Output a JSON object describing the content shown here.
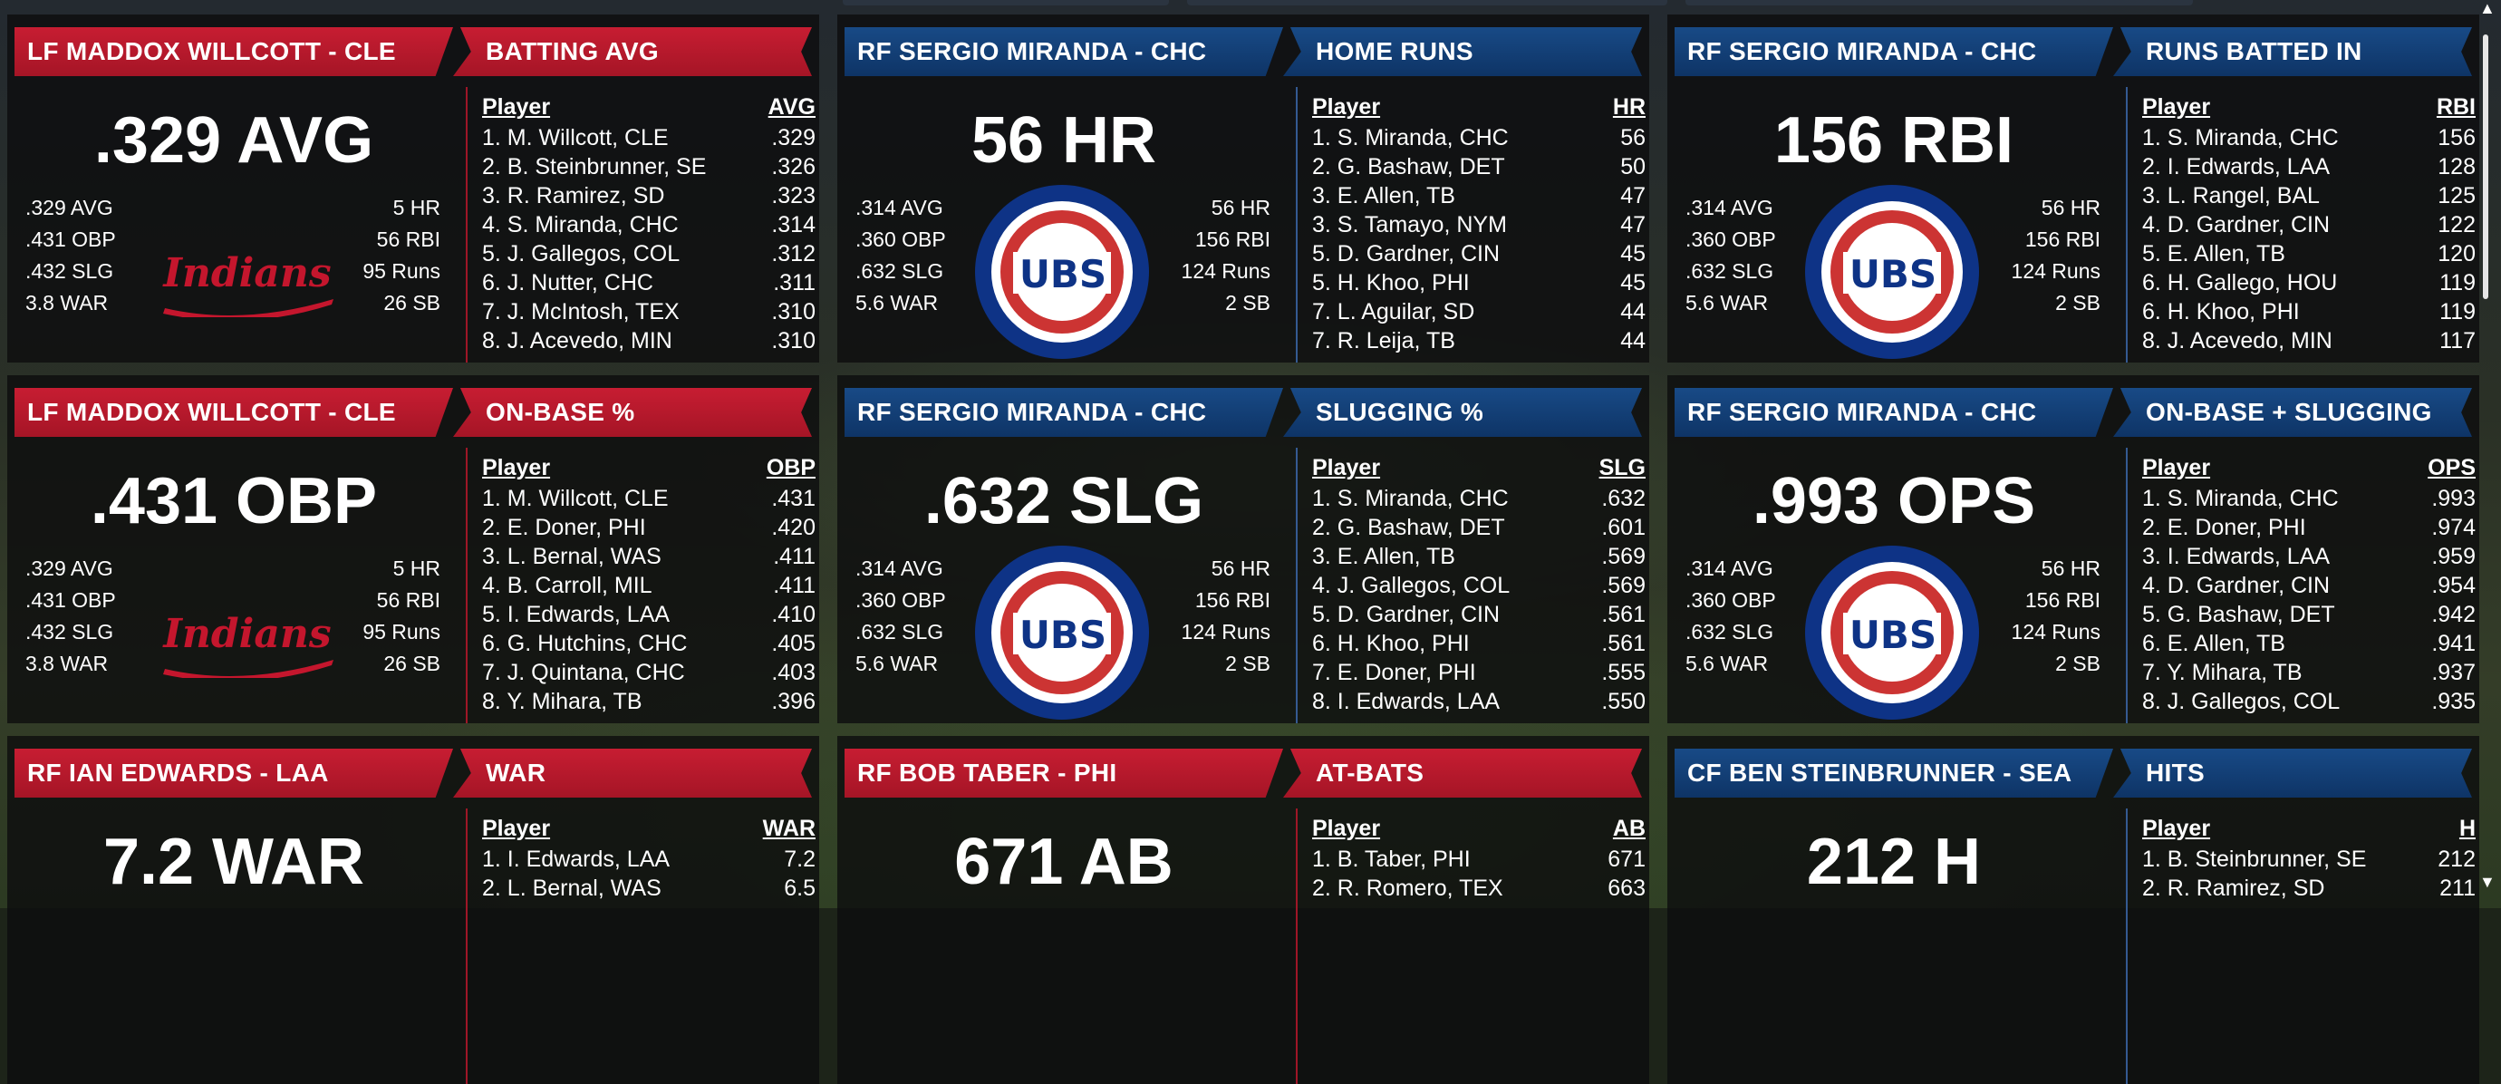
{
  "colors": {
    "red": "#b7182b",
    "blue": "#0e3466",
    "indians": "#c4162d",
    "cubs_blue": "#0e3386",
    "cubs_red": "#cc3433"
  },
  "logos": {
    "indians": "Indians",
    "cubs": "UBS"
  },
  "tiles": [
    {
      "theme": "red",
      "player_label": "LF MADDOX WILLCOTT - CLE",
      "category": "BATTING AVG",
      "big_value": ".329 AVG",
      "logo": "indians-logo",
      "stats_left": [
        ".329 AVG",
        ".431 OBP",
        ".432 SLG",
        "3.8 WAR"
      ],
      "stats_right": [
        "5 HR",
        "56 RBI",
        "95 Runs",
        "26 SB"
      ],
      "table_header": [
        "Player",
        "AVG"
      ],
      "rows": [
        [
          "1. M. Willcott, CLE",
          ".329"
        ],
        [
          "2. B. Steinbrunner, SE",
          ".326"
        ],
        [
          "3. R. Ramirez, SD",
          ".323"
        ],
        [
          "4. S. Miranda, CHC",
          ".314"
        ],
        [
          "5. J. Gallegos, COL",
          ".312"
        ],
        [
          "6. J. Nutter, CHC",
          ".311"
        ],
        [
          "7. J. McIntosh, TEX",
          ".310"
        ],
        [
          "8. J. Acevedo, MIN",
          ".310"
        ]
      ]
    },
    {
      "theme": "blue",
      "player_label": "RF SERGIO MIRANDA - CHC",
      "category": "HOME RUNS",
      "big_value": "56 HR",
      "logo": "cubs-logo",
      "stats_left": [
        ".314 AVG",
        ".360 OBP",
        ".632 SLG",
        "5.6 WAR"
      ],
      "stats_right": [
        "56 HR",
        "156 RBI",
        "124 Runs",
        "2 SB"
      ],
      "table_header": [
        "Player",
        "HR"
      ],
      "rows": [
        [
          "1. S. Miranda, CHC",
          "56"
        ],
        [
          "2. G. Bashaw, DET",
          "50"
        ],
        [
          "3. E. Allen, TB",
          "47"
        ],
        [
          "3. S. Tamayo, NYM",
          "47"
        ],
        [
          "5. D. Gardner, CIN",
          "45"
        ],
        [
          "5. H. Khoo, PHI",
          "45"
        ],
        [
          "7. L. Aguilar, SD",
          "44"
        ],
        [
          "7. R. Leija, TB",
          "44"
        ]
      ]
    },
    {
      "theme": "blue",
      "player_label": "RF SERGIO MIRANDA - CHC",
      "category": "RUNS BATTED IN",
      "big_value": "156 RBI",
      "logo": "cubs-logo",
      "stats_left": [
        ".314 AVG",
        ".360 OBP",
        ".632 SLG",
        "5.6 WAR"
      ],
      "stats_right": [
        "56 HR",
        "156 RBI",
        "124 Runs",
        "2 SB"
      ],
      "table_header": [
        "Player",
        "RBI"
      ],
      "rows": [
        [
          "1. S. Miranda, CHC",
          "156"
        ],
        [
          "2. I. Edwards, LAA",
          "128"
        ],
        [
          "3. L. Rangel, BAL",
          "125"
        ],
        [
          "4. D. Gardner, CIN",
          "122"
        ],
        [
          "5. E. Allen, TB",
          "120"
        ],
        [
          "6. H. Gallego, HOU",
          "119"
        ],
        [
          "6. H. Khoo, PHI",
          "119"
        ],
        [
          "8. J. Acevedo, MIN",
          "117"
        ]
      ]
    },
    {
      "theme": "red",
      "player_label": "LF MADDOX WILLCOTT - CLE",
      "category": "ON-BASE %",
      "big_value": ".431 OBP",
      "logo": "indians-logo",
      "stats_left": [
        ".329 AVG",
        ".431 OBP",
        ".432 SLG",
        "3.8 WAR"
      ],
      "stats_right": [
        "5 HR",
        "56 RBI",
        "95 Runs",
        "26 SB"
      ],
      "table_header": [
        "Player",
        "OBP"
      ],
      "rows": [
        [
          "1. M. Willcott, CLE",
          ".431"
        ],
        [
          "2. E. Doner, PHI",
          ".420"
        ],
        [
          "3. L. Bernal, WAS",
          ".411"
        ],
        [
          "4. B. Carroll, MIL",
          ".411"
        ],
        [
          "5. I. Edwards, LAA",
          ".410"
        ],
        [
          "6. G. Hutchins, CHC",
          ".405"
        ],
        [
          "7. J. Quintana, CHC",
          ".403"
        ],
        [
          "8. Y. Mihara, TB",
          ".396"
        ]
      ]
    },
    {
      "theme": "blue",
      "player_label": "RF SERGIO MIRANDA - CHC",
      "category": "SLUGGING %",
      "big_value": ".632 SLG",
      "logo": "cubs-logo",
      "stats_left": [
        ".314 AVG",
        ".360 OBP",
        ".632 SLG",
        "5.6 WAR"
      ],
      "stats_right": [
        "56 HR",
        "156 RBI",
        "124 Runs",
        "2 SB"
      ],
      "table_header": [
        "Player",
        "SLG"
      ],
      "rows": [
        [
          "1. S. Miranda, CHC",
          ".632"
        ],
        [
          "2. G. Bashaw, DET",
          ".601"
        ],
        [
          "3. E. Allen, TB",
          ".569"
        ],
        [
          "4. J. Gallegos, COL",
          ".569"
        ],
        [
          "5. D. Gardner, CIN",
          ".561"
        ],
        [
          "6. H. Khoo, PHI",
          ".561"
        ],
        [
          "7. E. Doner, PHI",
          ".555"
        ],
        [
          "8. I. Edwards, LAA",
          ".550"
        ]
      ]
    },
    {
      "theme": "blue",
      "player_label": "RF SERGIO MIRANDA - CHC",
      "category": "ON-BASE + SLUGGING",
      "big_value": ".993 OPS",
      "logo": "cubs-logo",
      "stats_left": [
        ".314 AVG",
        ".360 OBP",
        ".632 SLG",
        "5.6 WAR"
      ],
      "stats_right": [
        "56 HR",
        "156 RBI",
        "124 Runs",
        "2 SB"
      ],
      "table_header": [
        "Player",
        "OPS"
      ],
      "rows": [
        [
          "1. S. Miranda, CHC",
          ".993"
        ],
        [
          "2. E. Doner, PHI",
          ".974"
        ],
        [
          "3. I. Edwards, LAA",
          ".959"
        ],
        [
          "4. D. Gardner, CIN",
          ".954"
        ],
        [
          "5. G. Bashaw, DET",
          ".942"
        ],
        [
          "6. E. Allen, TB",
          ".941"
        ],
        [
          "7. Y. Mihara, TB",
          ".937"
        ],
        [
          "8. J. Gallegos, COL",
          ".935"
        ]
      ]
    },
    {
      "theme": "red",
      "player_label": "RF IAN EDWARDS - LAA",
      "category": "WAR",
      "big_value": "7.2 WAR",
      "logo": "",
      "stats_left": [],
      "stats_right": [],
      "table_header": [
        "Player",
        "WAR"
      ],
      "rows": [
        [
          "1. I. Edwards, LAA",
          "7.2"
        ],
        [
          "2. L. Bernal, WAS",
          "6.5"
        ]
      ]
    },
    {
      "theme": "red",
      "player_label": "RF BOB TABER - PHI",
      "category": "AT-BATS",
      "big_value": "671 AB",
      "logo": "",
      "stats_left": [],
      "stats_right": [],
      "table_header": [
        "Player",
        "AB"
      ],
      "rows": [
        [
          "1. B. Taber, PHI",
          "671"
        ],
        [
          "2. R. Romero, TEX",
          "663"
        ]
      ]
    },
    {
      "theme": "blue",
      "player_label": "CF BEN STEINBRUNNER - SEA",
      "category": "HITS",
      "big_value": "212 H",
      "logo": "",
      "stats_left": [],
      "stats_right": [],
      "table_header": [
        "Player",
        "H"
      ],
      "rows": [
        [
          "1. B. Steinbrunner, SE",
          "212"
        ],
        [
          "2. R. Ramirez, SD",
          "211"
        ]
      ]
    }
  ]
}
